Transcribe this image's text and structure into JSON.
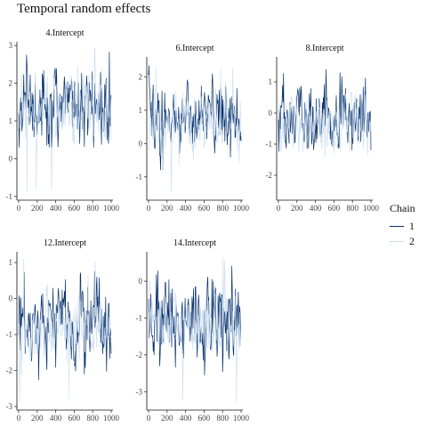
{
  "title": "Temporal random effects",
  "legend": {
    "title": "Chain",
    "entries": [
      {
        "label": "1",
        "color": "#08306b"
      },
      {
        "label": "2",
        "color": "#c6dbef"
      }
    ]
  },
  "chart_data": [
    {
      "type": "line",
      "title": "4.Intercept",
      "xlim": [
        0,
        1000
      ],
      "ylim": [
        -1.1,
        3.1
      ],
      "xticks": [
        0,
        200,
        400,
        600,
        800,
        1000
      ],
      "yticks": [
        -1,
        0,
        1,
        2,
        3
      ],
      "series": [
        {
          "name": "1",
          "mean": 1.45,
          "sd": 0.45,
          "min": 0.3,
          "max": 2.95
        },
        {
          "name": "2",
          "mean": 1.3,
          "sd": 0.4,
          "min": -0.9,
          "max": 3.05
        }
      ]
    },
    {
      "type": "line",
      "title": "6.Intercept",
      "xlim": [
        0,
        1000
      ],
      "ylim": [
        -1.7,
        2.6
      ],
      "xticks": [
        0,
        200,
        400,
        600,
        800,
        1000
      ],
      "yticks": [
        -1,
        0,
        1,
        2
      ],
      "series": [
        {
          "name": "1",
          "mean": 0.75,
          "sd": 0.5,
          "min": -0.8,
          "max": 2.35
        },
        {
          "name": "2",
          "mean": 0.6,
          "sd": 0.4,
          "min": -1.5,
          "max": 2.4
        }
      ]
    },
    {
      "type": "line",
      "title": "8.Intercept",
      "xlim": [
        0,
        1000
      ],
      "ylim": [
        -2.8,
        1.8
      ],
      "xticks": [
        0,
        200,
        400,
        600,
        800,
        1000
      ],
      "yticks": [
        -2,
        -1,
        0,
        1
      ],
      "series": [
        {
          "name": "1",
          "mean": -0.2,
          "sd": 0.5,
          "min": -1.9,
          "max": 1.4
        },
        {
          "name": "2",
          "mean": -0.4,
          "sd": 0.45,
          "min": -2.5,
          "max": 1.5
        }
      ]
    },
    {
      "type": "line",
      "title": "12.Intercept",
      "xlim": [
        0,
        1000
      ],
      "ylim": [
        -3.1,
        1.3
      ],
      "xticks": [
        0,
        200,
        400,
        600,
        800,
        1000
      ],
      "yticks": [
        -3,
        -2,
        -1,
        0,
        1
      ],
      "series": [
        {
          "name": "1",
          "mean": -0.7,
          "sd": 0.5,
          "min": -2.3,
          "max": 0.8
        },
        {
          "name": "2",
          "mean": -0.8,
          "sd": 0.45,
          "min": -2.95,
          "max": 1.2
        }
      ]
    },
    {
      "type": "line",
      "title": "14.Intercept",
      "xlim": [
        0,
        1000
      ],
      "ylim": [
        -3.5,
        0.8
      ],
      "xticks": [
        0,
        200,
        400,
        600,
        800,
        1000
      ],
      "yticks": [
        -3,
        -2,
        -1,
        0
      ],
      "series": [
        {
          "name": "1",
          "mean": -1.0,
          "sd": 0.5,
          "min": -2.6,
          "max": 0.6
        },
        {
          "name": "2",
          "mean": -1.1,
          "sd": 0.45,
          "min": -3.3,
          "max": 0.7
        }
      ]
    }
  ]
}
